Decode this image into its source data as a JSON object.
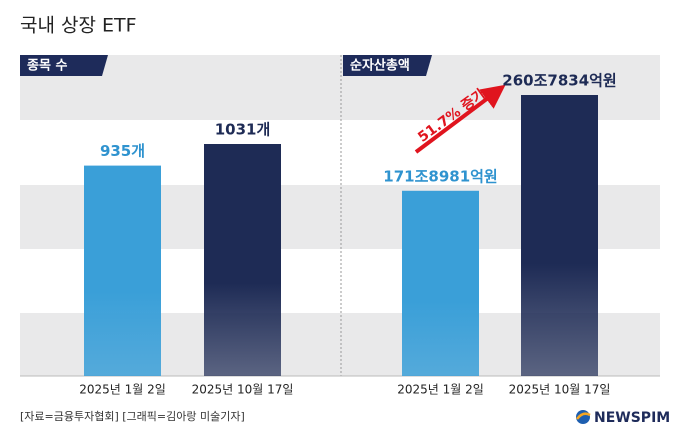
{
  "title": "국내 상장 ETF",
  "chart_data": [
    {
      "type": "bar",
      "title": "종목 수",
      "categories": [
        "2025년 1월 2일",
        "2025년 10월 17일"
      ],
      "values": [
        935,
        1031
      ],
      "value_labels": [
        "935개",
        "1031개"
      ],
      "colors": [
        "#3a9fd8",
        "#1e2b55"
      ]
    },
    {
      "type": "bar",
      "title": "순자산총액",
      "categories": [
        "2025년 1월 2일",
        "2025년 10월 17일"
      ],
      "values": [
        1718981,
        2607834
      ],
      "value_labels": [
        "171조8981억원",
        "260조7834억원"
      ],
      "colors": [
        "#3a9fd8",
        "#1e2b55"
      ],
      "annotation": "51.7% 증가"
    }
  ],
  "source": "[자료=금융투자협회] [그래픽=김아랑 미술기자]",
  "logo": "NEWSPIM"
}
